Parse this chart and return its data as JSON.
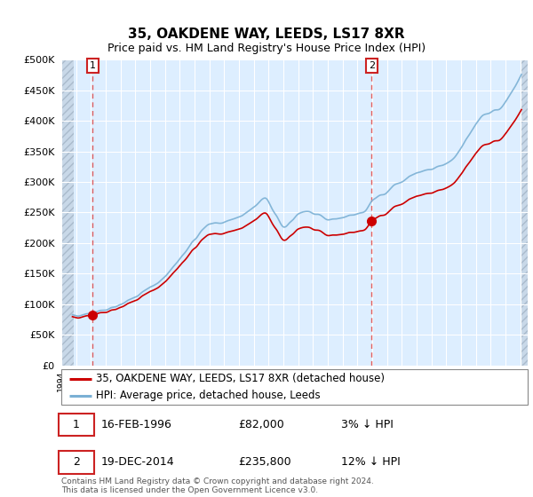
{
  "title": "35, OAKDENE WAY, LEEDS, LS17 8XR",
  "subtitle": "Price paid vs. HM Land Registry's House Price Index (HPI)",
  "sale1_year": 1996.125,
  "sale1_price": 82000,
  "sale2_year": 2014.958,
  "sale2_price": 235800,
  "hpi_line_color": "#7ab0d4",
  "price_line_color": "#cc0000",
  "sale_dot_color": "#cc0000",
  "dashed_line_color": "#e06060",
  "background_plot": "#ddeeff",
  "hatch_color": "#c8d8e8",
  "grid_color": "#ffffff",
  "ylim": [
    0,
    500000
  ],
  "yticks": [
    0,
    50000,
    100000,
    150000,
    200000,
    250000,
    300000,
    350000,
    400000,
    450000,
    500000
  ],
  "legend_label1": "35, OAKDENE WAY, LEEDS, LS17 8XR (detached house)",
  "legend_label2": "HPI: Average price, detached house, Leeds",
  "footer": "Contains HM Land Registry data © Crown copyright and database right 2024.\nThis data is licensed under the Open Government Licence v3.0.",
  "x_start_year": 1994,
  "x_end_year": 2025
}
